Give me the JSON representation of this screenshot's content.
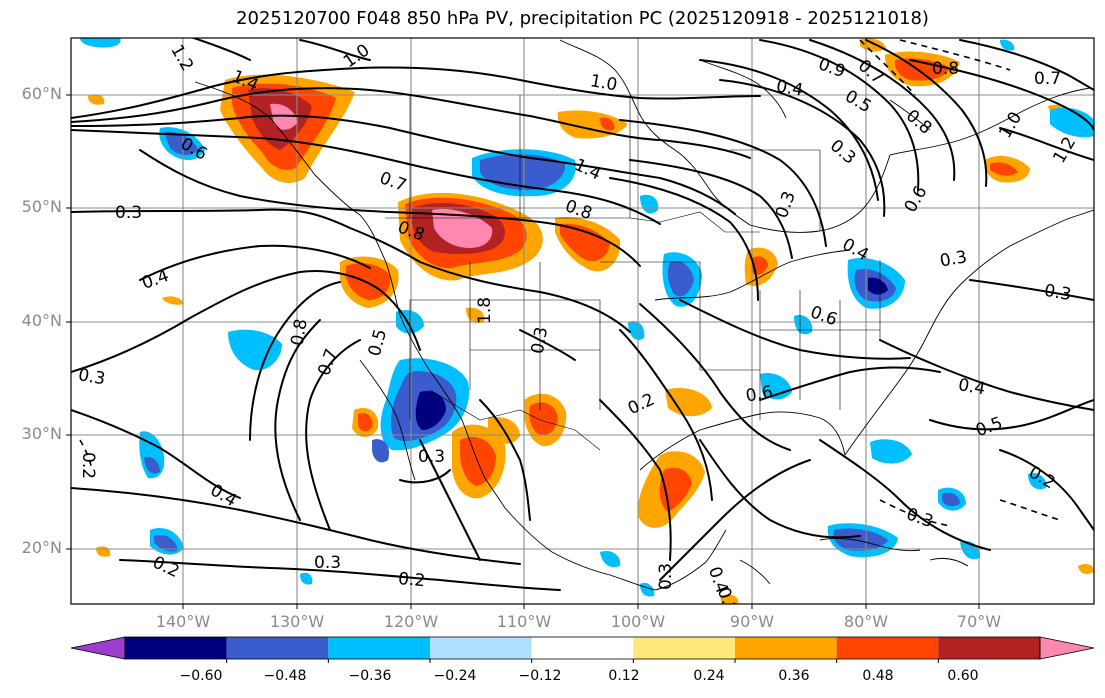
{
  "title": "2025120700 F048 850 hPa PV, precipitation PC (2025120918 - 2025121018)",
  "latitude_labels": [
    "60°N",
    "50°N",
    "40°N",
    "30°N",
    "20°N"
  ],
  "longitude_labels": [
    "140°W",
    "130°W",
    "120°W",
    "110°W",
    "100°W",
    "90°W",
    "80°W",
    "70°W"
  ],
  "colorbar": {
    "ticks": [
      "−0.60",
      "−0.48",
      "−0.36",
      "−0.24",
      "−0.12",
      "0.12",
      "0.24",
      "0.36",
      "0.48",
      "0.60"
    ],
    "colors": [
      "#9b3fcf",
      "#00007f",
      "#3a5ccc",
      "#00bfff",
      "#b0e0ff",
      "#ffffff",
      "#ffe87a",
      "#ffa500",
      "#ff4500",
      "#b22222",
      "#ff88b0"
    ],
    "extend": "both"
  },
  "contour_labels": [
    "1.2",
    "1.4",
    "1.0",
    "0.6",
    "0.3",
    "0.4",
    "0.7",
    "0.8",
    "0.5",
    "0.2",
    "1.4",
    "0.8",
    "1.0",
    "0.9",
    "0.7",
    "0.5",
    "0.3",
    "0.4",
    "0.8",
    "1.0",
    "1.2",
    "0.7",
    "0.8",
    "0.6",
    "0.3",
    "0.2",
    "0.4",
    "0.5",
    "0.4",
    "0.3",
    "0.2",
    "0.3",
    "0.3",
    "0.6",
    "0.6",
    "0.8",
    "0.7",
    "0.3",
    "0.2",
    "0.4",
    "0.2",
    "0.3",
    "0.3",
    "0.3",
    "0.4",
    "0.2",
    "0.3",
    "1.8"
  ]
}
